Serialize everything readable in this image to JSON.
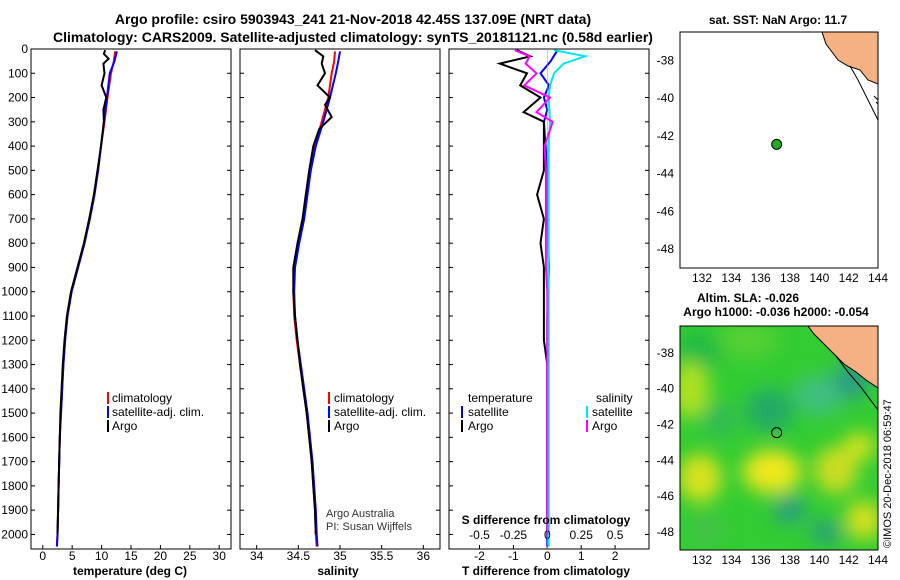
{
  "title": {
    "line1": "Argo profile: csiro 5903943_241 21-Nov-2018 42.45S 137.09E (NRT data)",
    "line2": "Climatology: CARS2009. Satellite-adjusted climatology: synTS_20181121.nc (0.58d earlier)"
  },
  "colors": {
    "climatology": "#ff0000",
    "satellite": "#0000ff",
    "argo": "#000000",
    "sat_sal": "#00e5ee",
    "argo_sal": "#ff00ff",
    "land": "#f4b183"
  },
  "chart_data": [
    {
      "type": "line",
      "name": "temperature",
      "xlabel": "temperature (deg C)",
      "xlim": [
        -2,
        32
      ],
      "xticks": [
        "0",
        "5",
        "10",
        "15",
        "20",
        "25",
        "30"
      ],
      "xtick_values": [
        0,
        5,
        10,
        15,
        20,
        25,
        30
      ],
      "ylim": [
        2060,
        0
      ],
      "yticks": [
        "0",
        "100",
        "200",
        "300",
        "400",
        "500",
        "600",
        "700",
        "800",
        "900",
        "1000",
        "1100",
        "1200",
        "1300",
        "1400",
        "1500",
        "1600",
        "1700",
        "1800",
        "1900",
        "2000"
      ],
      "legend": [
        "climatology",
        "satellite-adj. clim.",
        "Argo"
      ],
      "series": [
        {
          "name": "climatology",
          "depth": [
            10,
            50,
            100,
            200,
            300,
            400,
            500,
            600,
            700,
            800,
            900,
            1000,
            1100,
            1200,
            1300,
            1400,
            1500,
            1600,
            1700,
            1800,
            1900,
            2000,
            2050
          ],
          "values": [
            12.3,
            12.1,
            11.6,
            11.0,
            10.5,
            9.9,
            9.4,
            8.8,
            8.0,
            7.1,
            6.0,
            4.9,
            4.2,
            3.8,
            3.5,
            3.3,
            3.1,
            2.9,
            2.8,
            2.7,
            2.6,
            2.5,
            2.4
          ]
        },
        {
          "name": "satellite-adj. clim.",
          "depth": [
            10,
            50,
            100,
            200,
            300,
            400,
            500,
            600,
            700,
            800,
            900,
            1000,
            1100,
            1200,
            1300,
            1400,
            1500,
            1600,
            1700,
            1800,
            1900,
            2000,
            2050
          ],
          "values": [
            12.6,
            12.2,
            11.4,
            10.9,
            10.4,
            9.9,
            9.4,
            8.8,
            8.0,
            7.1,
            6.0,
            4.9,
            4.2,
            3.8,
            3.5,
            3.3,
            3.1,
            2.9,
            2.8,
            2.7,
            2.6,
            2.5,
            2.4
          ]
        },
        {
          "name": "Argo",
          "depth": [
            5,
            20,
            40,
            60,
            100,
            150,
            200,
            250,
            300,
            400,
            500,
            600,
            700,
            800,
            900,
            1000,
            1100,
            1200,
            1300,
            1400,
            1500,
            1600,
            1700,
            1800,
            1900,
            2000
          ],
          "values": [
            10.6,
            10.4,
            11.2,
            10.3,
            10.5,
            10.0,
            10.8,
            10.3,
            10.4,
            9.9,
            9.3,
            8.7,
            7.9,
            7.0,
            5.9,
            4.8,
            4.1,
            3.7,
            3.4,
            3.2,
            3.0,
            2.9,
            2.8,
            2.7,
            2.6,
            2.5
          ]
        }
      ]
    },
    {
      "type": "line",
      "name": "salinity",
      "xlabel": "salinity",
      "xlim": [
        33.8,
        36.2
      ],
      "xticks": [
        "34",
        "34.5",
        "35",
        "35.5",
        "36"
      ],
      "xtick_values": [
        34,
        34.5,
        35,
        35.5,
        36
      ],
      "ylim": [
        2060,
        0
      ],
      "legend": [
        "climatology",
        "satellite-adj. clim.",
        "Argo"
      ],
      "annotation": [
        "Argo Australia",
        "PI: Susan Wijffels"
      ],
      "series": [
        {
          "name": "climatology",
          "depth": [
            10,
            50,
            100,
            200,
            300,
            400,
            500,
            600,
            700,
            800,
            900,
            1000,
            1100,
            1200,
            1300,
            1400,
            1500,
            1600,
            1700,
            1800,
            1900,
            2000,
            2050
          ],
          "values": [
            34.94,
            34.93,
            34.9,
            34.86,
            34.78,
            34.7,
            34.64,
            34.6,
            34.56,
            34.5,
            34.45,
            34.44,
            34.45,
            34.48,
            34.52,
            34.56,
            34.6,
            34.63,
            34.66,
            34.68,
            34.7,
            34.71,
            34.72
          ]
        },
        {
          "name": "satellite-adj. clim.",
          "depth": [
            10,
            50,
            100,
            200,
            300,
            400,
            500,
            600,
            700,
            800,
            900,
            1000,
            1100,
            1200,
            1300,
            1400,
            1500,
            1600,
            1700,
            1800,
            1900,
            2000,
            2050
          ],
          "values": [
            35.0,
            34.98,
            34.95,
            34.88,
            34.8,
            34.71,
            34.65,
            34.61,
            34.57,
            34.51,
            34.46,
            34.45,
            34.46,
            34.49,
            34.53,
            34.57,
            34.61,
            34.64,
            34.67,
            34.69,
            34.71,
            34.72,
            34.73
          ]
        },
        {
          "name": "Argo",
          "depth": [
            5,
            30,
            60,
            100,
            150,
            200,
            230,
            280,
            330,
            400,
            500,
            600,
            700,
            800,
            900,
            1000,
            1100,
            1200,
            1300,
            1400,
            1500,
            1600,
            1700,
            1800,
            1900,
            2000
          ],
          "values": [
            34.7,
            34.8,
            34.78,
            34.82,
            34.73,
            34.88,
            34.82,
            34.9,
            34.75,
            34.68,
            34.63,
            34.59,
            34.55,
            34.49,
            34.44,
            34.44,
            34.46,
            34.49,
            34.52,
            34.56,
            34.6,
            34.63,
            34.66,
            34.68,
            34.7,
            34.71
          ]
        }
      ]
    },
    {
      "type": "line",
      "name": "difference",
      "xlabel": "T difference from climatology",
      "xlabel_top": "S difference from climatology",
      "xlim": [
        -2.9,
        3.0
      ],
      "xticks": [
        "-2",
        "-1",
        "0",
        "1",
        "2"
      ],
      "xtick_values": [
        -2,
        -1,
        0,
        1,
        2
      ],
      "sticks": [
        "-0.5",
        "-0.25",
        "0",
        "0.25",
        "0.5"
      ],
      "stick_values": [
        -0.5,
        -0.25,
        0,
        0.25,
        0.5
      ],
      "legend_temperature": [
        "temperature",
        "satellite",
        "Argo"
      ],
      "legend_salinity": [
        "salinity",
        "satellite",
        "Argo"
      ],
      "series": [
        {
          "name": "T satellite",
          "depth": [
            5,
            50,
            100,
            150,
            200,
            250,
            300,
            400,
            500,
            700,
            900,
            1100,
            1300,
            1500,
            1700,
            1900,
            2050
          ],
          "values": [
            0.3,
            0.1,
            -0.2,
            0.05,
            -0.1,
            0.0,
            -0.1,
            -0.05,
            0.0,
            0.0,
            0.05,
            0.0,
            0.0,
            0.0,
            0.0,
            0.0,
            0.0
          ]
        },
        {
          "name": "T Argo",
          "depth": [
            5,
            30,
            60,
            100,
            150,
            200,
            260,
            300,
            400,
            500,
            600,
            700,
            800,
            900,
            1000,
            1100,
            1200,
            1300,
            1400,
            1500,
            1600,
            1700,
            1800,
            1900,
            2000
          ],
          "values": [
            -0.9,
            -0.5,
            -1.4,
            -0.6,
            -0.8,
            -0.2,
            -0.7,
            -0.1,
            -0.1,
            -0.1,
            -0.3,
            -0.1,
            -0.2,
            -0.1,
            -0.1,
            -0.1,
            -0.1,
            0.0,
            0.0,
            0.0,
            0.0,
            0.0,
            0.0,
            0.0,
            0.0
          ]
        },
        {
          "name": "S satellite",
          "depth": [
            5,
            30,
            60,
            100,
            150,
            200,
            300,
            400,
            600,
            800,
            1000,
            1200,
            1400,
            1600,
            1800,
            2050
          ],
          "values": [
            0.05,
            0.28,
            0.12,
            0.05,
            0.02,
            0.01,
            0.02,
            0.01,
            0.01,
            0.01,
            0.01,
            0.01,
            0.01,
            0.01,
            0.01,
            0.01
          ]
        },
        {
          "name": "S Argo",
          "depth": [
            5,
            30,
            60,
            100,
            150,
            200,
            260,
            300,
            400,
            500,
            600,
            700,
            800,
            900,
            1000,
            1100,
            1200,
            1300,
            1400,
            1500,
            1600,
            1700,
            1800,
            1900,
            2000
          ],
          "values": [
            -0.24,
            -0.13,
            -0.16,
            -0.08,
            -0.17,
            0.02,
            -0.08,
            0.04,
            -0.02,
            -0.01,
            -0.01,
            -0.01,
            -0.01,
            -0.01,
            0.0,
            0.0,
            0.0,
            0.0,
            0.0,
            0.0,
            0.0,
            0.0,
            0.0,
            0.0,
            0.0
          ]
        }
      ]
    },
    {
      "type": "map",
      "name": "sst-map",
      "title": "sat. SST: NaN Argo: 11.7",
      "xlim": [
        130.5,
        144
      ],
      "ylim": [
        -49,
        -36.5
      ],
      "xticks": [
        "132",
        "134",
        "136",
        "138",
        "140",
        "142",
        "144"
      ],
      "xtick_values": [
        132,
        134,
        136,
        138,
        140,
        142,
        144
      ],
      "yticks": [
        "-38",
        "-40",
        "-42",
        "-44",
        "-46",
        "-48"
      ],
      "ytick_values": [
        -38,
        -40,
        -42,
        -44,
        -46,
        -48
      ],
      "float_position": {
        "lon": 137.09,
        "lat": -42.45
      }
    },
    {
      "type": "map",
      "name": "sla-map",
      "title1": "Altim. SLA: -0.026",
      "title2": "Argo h1000: -0.036 h2000: -0.054",
      "xlim": [
        130.5,
        144
      ],
      "ylim": [
        -49,
        -36.5
      ],
      "xticks": [
        "132",
        "134",
        "136",
        "138",
        "140",
        "142",
        "144"
      ],
      "xtick_values": [
        132,
        134,
        136,
        138,
        140,
        142,
        144
      ],
      "yticks": [
        "-38",
        "-40",
        "-42",
        "-44",
        "-46",
        "-48"
      ],
      "ytick_values": [
        -38,
        -40,
        -42,
        -44,
        -46,
        -48
      ],
      "float_position": {
        "lon": 137.09,
        "lat": -42.45
      }
    }
  ],
  "credit": "©IMOS 20-Dec-2018 06:59:47"
}
